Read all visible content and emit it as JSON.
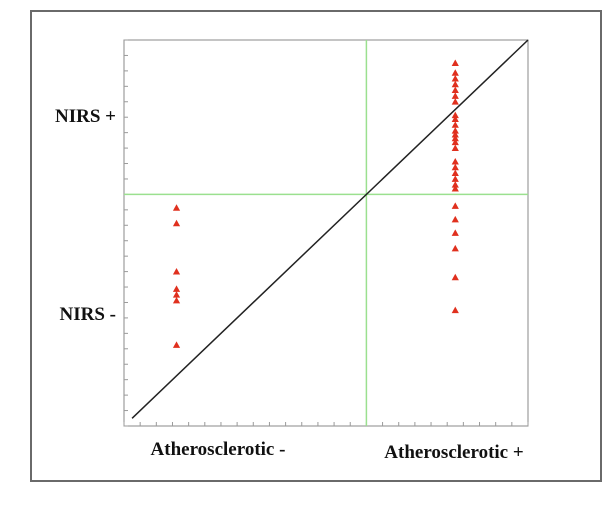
{
  "chart_data": {
    "type": "scatter",
    "title": "",
    "xlabel": "",
    "ylabel": "",
    "x_ticks": [
      "Atherosclerotic -",
      "Atherosclerotic +"
    ],
    "y_ticks": [
      "NIRS +",
      "NIRS -"
    ],
    "xlim": [
      0,
      100
    ],
    "ylim": [
      0,
      100
    ],
    "grid": false,
    "legend": "none",
    "colors": {
      "points": "#e0301e",
      "diagonal": "#222222",
      "threshold": "#9be08f",
      "frame": "#6a6a6a"
    },
    "marker": "triangle",
    "threshold_x": 60,
    "threshold_y": 60,
    "diagonal_line": [
      [
        2,
        2
      ],
      [
        100,
        100
      ]
    ],
    "series": [
      {
        "values": [
          {
            "x": 13,
            "y": 56.5
          },
          {
            "x": 13,
            "y": 52.5
          },
          {
            "x": 13,
            "y": 40.0
          },
          {
            "x": 13,
            "y": 35.5
          },
          {
            "x": 13,
            "y": 34.0
          },
          {
            "x": 13,
            "y": 32.5
          },
          {
            "x": 13,
            "y": 21.0
          },
          {
            "x": 82,
            "y": 94.0
          },
          {
            "x": 82,
            "y": 91.5
          },
          {
            "x": 82,
            "y": 90.0
          },
          {
            "x": 82,
            "y": 88.5
          },
          {
            "x": 82,
            "y": 87.0
          },
          {
            "x": 82,
            "y": 85.5
          },
          {
            "x": 82,
            "y": 84.0
          },
          {
            "x": 82,
            "y": 80.5
          },
          {
            "x": 82,
            "y": 79.5
          },
          {
            "x": 82,
            "y": 78.0
          },
          {
            "x": 82,
            "y": 76.5
          },
          {
            "x": 82,
            "y": 75.5
          },
          {
            "x": 82,
            "y": 74.5
          },
          {
            "x": 82,
            "y": 73.5
          },
          {
            "x": 82,
            "y": 72.0
          },
          {
            "x": 82,
            "y": 68.5
          },
          {
            "x": 82,
            "y": 67.0
          },
          {
            "x": 82,
            "y": 65.5
          },
          {
            "x": 82,
            "y": 64.0
          },
          {
            "x": 82,
            "y": 62.5
          },
          {
            "x": 82,
            "y": 61.5
          },
          {
            "x": 82,
            "y": 57.0
          },
          {
            "x": 82,
            "y": 53.5
          },
          {
            "x": 82,
            "y": 50.0
          },
          {
            "x": 82,
            "y": 46.0
          },
          {
            "x": 82,
            "y": 38.5
          },
          {
            "x": 82,
            "y": 30.0
          }
        ]
      }
    ]
  }
}
